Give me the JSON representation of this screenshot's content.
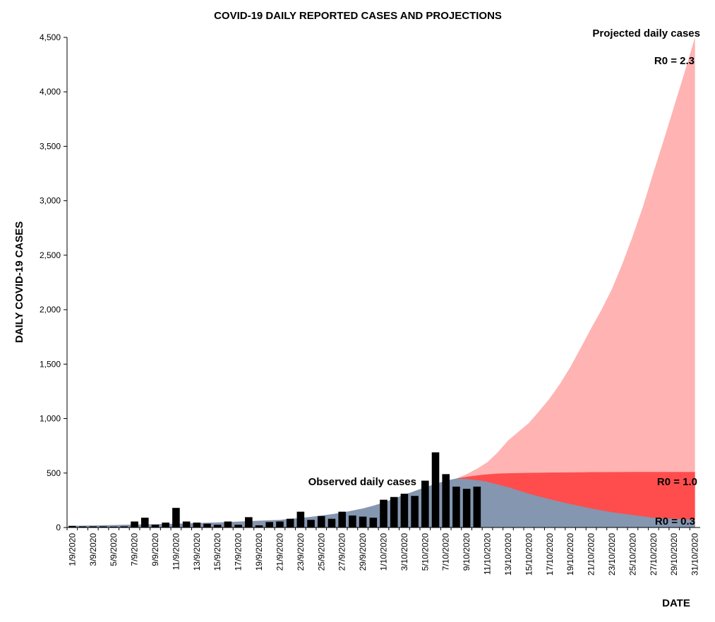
{
  "chart_data": {
    "type": "bar",
    "title": "COVID-19 DAILY REPORTED CASES AND PROJECTIONS",
    "y_label": "DAILY COVID-19 CASES",
    "x_label": "DATE",
    "annotation": "Projected daily cases",
    "categories": [
      "1/9/2020",
      null,
      "3/9/2020",
      null,
      "5/9/2020",
      null,
      "7/9/2020",
      null,
      "9/9/2020",
      null,
      "11/9/2020",
      null,
      "13/9/2020",
      null,
      "15/9/2020",
      null,
      "17/9/2020",
      null,
      "19/9/2020",
      null,
      "21/9/2020",
      null,
      "23/9/2020",
      null,
      "25/9/2020",
      null,
      "27/9/2020",
      null,
      "29/9/2020",
      null,
      "1/10/2020",
      null,
      "3/10/2020",
      null,
      "5/10/2020",
      null,
      "7/10/2020",
      null,
      "9/10/2020",
      null,
      "11/10/2020",
      null,
      "13/10/2020",
      null,
      "15/10/2020",
      null,
      "17/10/2020",
      null,
      "19/10/2020",
      null,
      "21/10/2020",
      null,
      "23/10/2020",
      null,
      "25/10/2020",
      null,
      "27/10/2020",
      null,
      "29/10/2020",
      null,
      "31/10/2020"
    ],
    "series": [
      {
        "name": "R0 = 2.3",
        "type": "area",
        "color": "#ffb3b3",
        "values": [
          null,
          null,
          null,
          null,
          null,
          null,
          null,
          null,
          null,
          null,
          null,
          null,
          null,
          null,
          null,
          null,
          null,
          null,
          null,
          null,
          null,
          null,
          null,
          null,
          null,
          null,
          null,
          null,
          null,
          null,
          null,
          null,
          null,
          null,
          null,
          null,
          null,
          450,
          490,
          540,
          600,
          690,
          800,
          880,
          960,
          1070,
          1185,
          1320,
          1475,
          1650,
          1830,
          2000,
          2190,
          2420,
          2675,
          2950,
          3260,
          3560,
          3870,
          4180,
          4500
        ]
      },
      {
        "name": "R0 = 1.0",
        "type": "area",
        "color": "#ff4d4d",
        "values": [
          null,
          null,
          null,
          null,
          null,
          null,
          null,
          null,
          null,
          null,
          null,
          null,
          null,
          null,
          null,
          null,
          null,
          null,
          null,
          null,
          null,
          null,
          null,
          null,
          null,
          null,
          null,
          null,
          null,
          null,
          null,
          null,
          null,
          null,
          null,
          null,
          null,
          450,
          465,
          478,
          488,
          495,
          498,
          500,
          502,
          503,
          504,
          505,
          506,
          507,
          508,
          508,
          509,
          509,
          510,
          510,
          510,
          510,
          510,
          510,
          510
        ]
      },
      {
        "name": "R0 = 0.3",
        "type": "area",
        "color": "#8496b0",
        "values": [
          15,
          17,
          19,
          21,
          23,
          25,
          27,
          29,
          31,
          33,
          35,
          38,
          41,
          44,
          47,
          50,
          54,
          58,
          62,
          66,
          70,
          80,
          88,
          98,
          110,
          122,
          137,
          155,
          175,
          200,
          230,
          265,
          300,
          335,
          370,
          400,
          430,
          450,
          445,
          435,
          420,
          395,
          370,
          340,
          310,
          285,
          260,
          237,
          215,
          195,
          175,
          157,
          140,
          127,
          115,
          102,
          90,
          85,
          80,
          75,
          70
        ]
      },
      {
        "name": "Observed daily cases",
        "type": "bar",
        "color": "#000000",
        "values": [
          15,
          10,
          10,
          10,
          8,
          10,
          55,
          90,
          25,
          45,
          180,
          55,
          45,
          35,
          25,
          55,
          25,
          95,
          20,
          50,
          55,
          80,
          145,
          70,
          105,
          80,
          145,
          110,
          100,
          90,
          255,
          280,
          310,
          290,
          430,
          690,
          490,
          375,
          355,
          375,
          null,
          null,
          null,
          null,
          null,
          null,
          null,
          null,
          null,
          null,
          null,
          null,
          null,
          null,
          null,
          null,
          null,
          null,
          null,
          null,
          null
        ]
      }
    ],
    "ylim": [
      0,
      4500
    ],
    "yticks": [
      0,
      500,
      {
        "value": 1000,
        "label": "1,000"
      },
      {
        "value": 1500,
        "label": "1,500"
      },
      {
        "value": 2000,
        "label": "2,000"
      },
      {
        "value": 2500,
        "label": "2,500"
      },
      {
        "value": 3000,
        "label": "3,000"
      },
      {
        "value": 3500,
        "label": "3,500"
      },
      {
        "value": 4000,
        "label": "4,000"
      },
      {
        "value": 4500,
        "label": "4,500"
      }
    ]
  }
}
